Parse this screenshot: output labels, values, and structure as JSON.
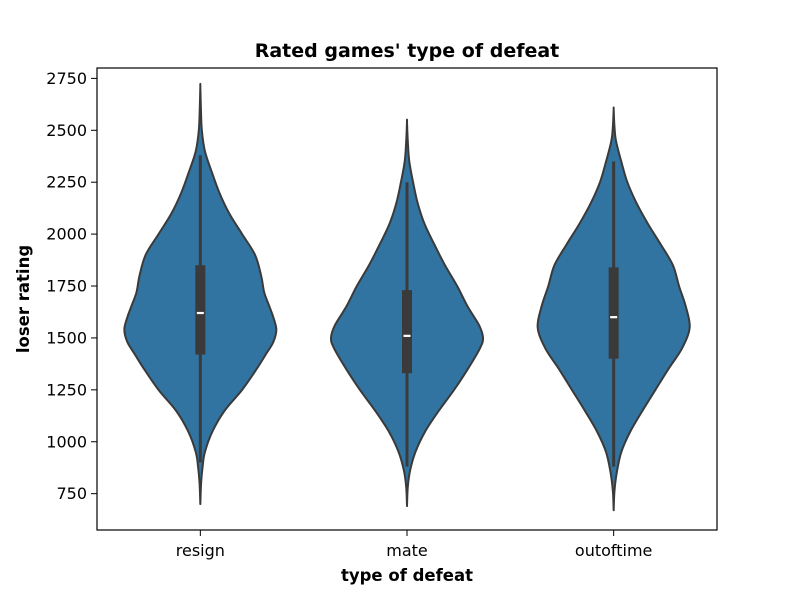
{
  "chart_data": {
    "type": "violin",
    "title": "Rated games' type of defeat",
    "xlabel": "type of defeat",
    "ylabel": "loser rating",
    "ylim": [
      575,
      2800
    ],
    "yticks": [
      750,
      1000,
      1250,
      1500,
      1750,
      2000,
      2250,
      2500,
      2750
    ],
    "categories": [
      "resign",
      "mate",
      "outoftime"
    ],
    "color": "#3274a1",
    "edge_color": "#3a3a3a",
    "grid": false,
    "legend": "none",
    "series": [
      {
        "category": "resign",
        "min": 700,
        "q1": 1420,
        "median": 1620,
        "q3": 1850,
        "max": 2710,
        "whisker_low": 900,
        "whisker_high": 2380,
        "density": [
          [
            700,
            0.0
          ],
          [
            800,
            0.01
          ],
          [
            880,
            0.03
          ],
          [
            950,
            0.06
          ],
          [
            1050,
            0.16
          ],
          [
            1150,
            0.32
          ],
          [
            1250,
            0.55
          ],
          [
            1350,
            0.74
          ],
          [
            1420,
            0.86
          ],
          [
            1480,
            0.96
          ],
          [
            1540,
            1.0
          ],
          [
            1600,
            0.96
          ],
          [
            1660,
            0.9
          ],
          [
            1720,
            0.84
          ],
          [
            1800,
            0.8
          ],
          [
            1900,
            0.72
          ],
          [
            2000,
            0.55
          ],
          [
            2100,
            0.38
          ],
          [
            2200,
            0.25
          ],
          [
            2300,
            0.15
          ],
          [
            2400,
            0.06
          ],
          [
            2500,
            0.02
          ],
          [
            2600,
            0.008
          ],
          [
            2710,
            0.0
          ]
        ]
      },
      {
        "category": "mate",
        "min": 690,
        "q1": 1330,
        "median": 1510,
        "q3": 1730,
        "max": 2540,
        "whisker_low": 880,
        "whisker_high": 2250,
        "density": [
          [
            690,
            0.0
          ],
          [
            780,
            0.01
          ],
          [
            860,
            0.04
          ],
          [
            950,
            0.11
          ],
          [
            1050,
            0.24
          ],
          [
            1150,
            0.42
          ],
          [
            1250,
            0.62
          ],
          [
            1350,
            0.8
          ],
          [
            1450,
            0.96
          ],
          [
            1500,
            1.0
          ],
          [
            1560,
            0.95
          ],
          [
            1650,
            0.8
          ],
          [
            1750,
            0.66
          ],
          [
            1850,
            0.5
          ],
          [
            1950,
            0.36
          ],
          [
            2050,
            0.23
          ],
          [
            2150,
            0.14
          ],
          [
            2250,
            0.08
          ],
          [
            2350,
            0.03
          ],
          [
            2450,
            0.01
          ],
          [
            2540,
            0.0
          ]
        ]
      },
      {
        "category": "outoftime",
        "min": 670,
        "q1": 1400,
        "median": 1600,
        "q3": 1840,
        "max": 2600,
        "whisker_low": 880,
        "whisker_high": 2350,
        "density": [
          [
            670,
            0.0
          ],
          [
            760,
            0.01
          ],
          [
            850,
            0.04
          ],
          [
            950,
            0.1
          ],
          [
            1050,
            0.22
          ],
          [
            1150,
            0.38
          ],
          [
            1250,
            0.55
          ],
          [
            1350,
            0.72
          ],
          [
            1450,
            0.9
          ],
          [
            1550,
            1.0
          ],
          [
            1650,
            0.95
          ],
          [
            1750,
            0.86
          ],
          [
            1850,
            0.78
          ],
          [
            1950,
            0.62
          ],
          [
            2050,
            0.45
          ],
          [
            2150,
            0.3
          ],
          [
            2250,
            0.18
          ],
          [
            2350,
            0.1
          ],
          [
            2450,
            0.03
          ],
          [
            2520,
            0.01
          ],
          [
            2600,
            0.0
          ]
        ]
      }
    ]
  }
}
